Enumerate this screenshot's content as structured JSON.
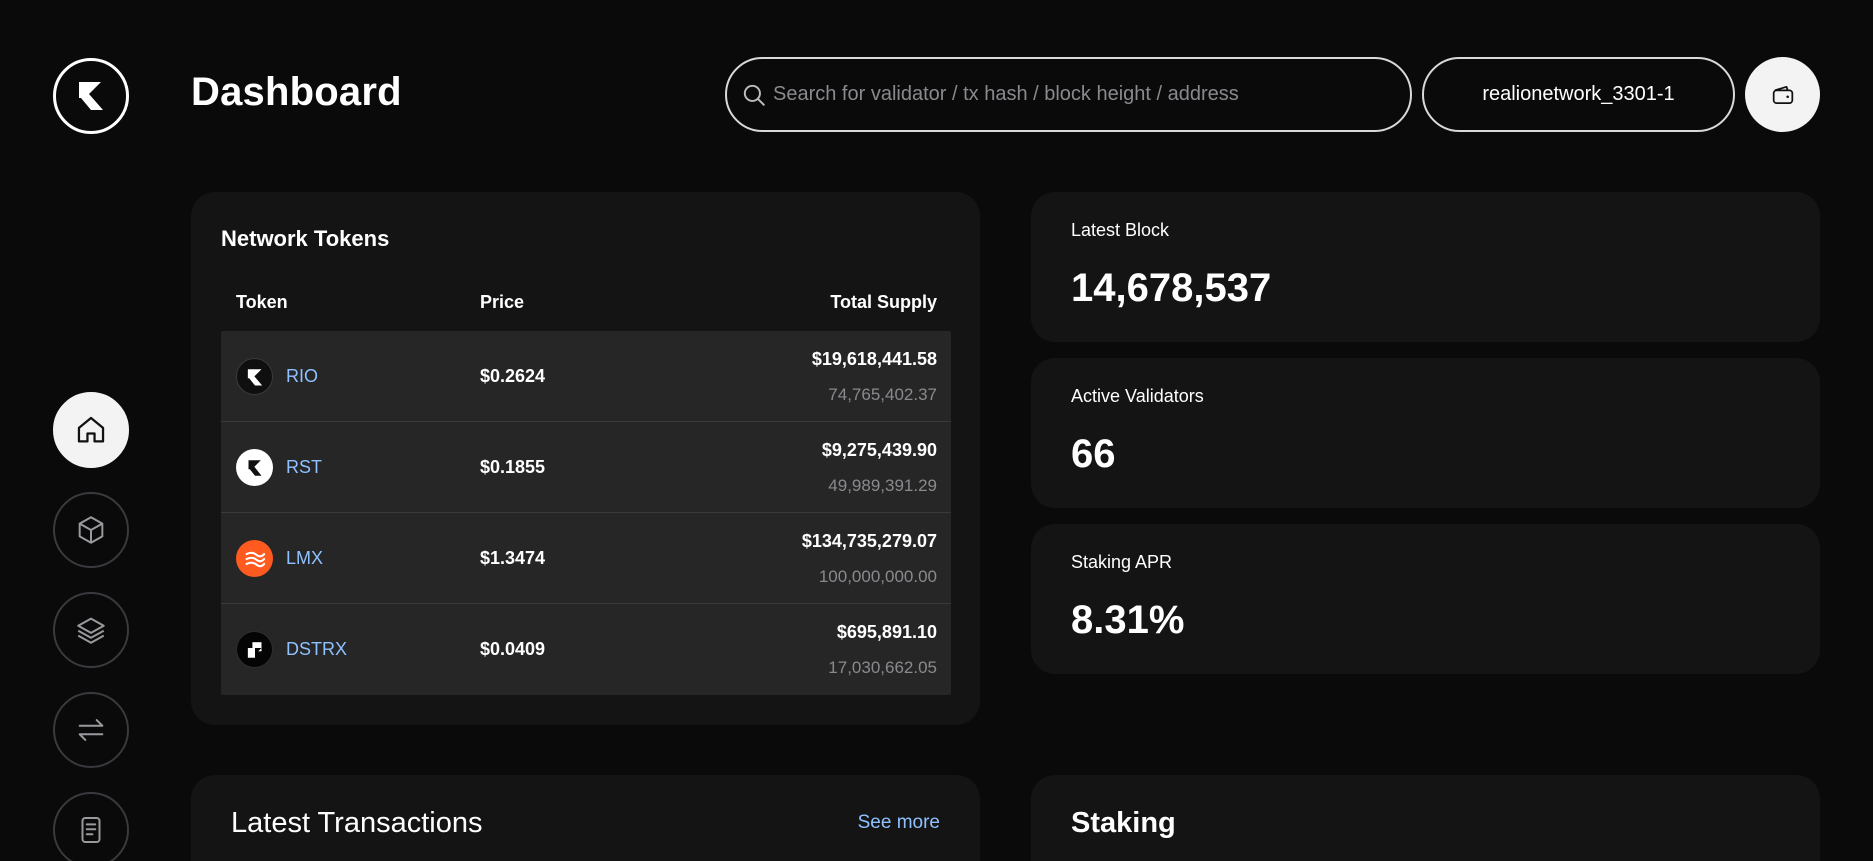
{
  "header": {
    "title": "Dashboard",
    "search_placeholder": "Search for validator / tx hash / block height / address",
    "network": "realionetwork_3301-1"
  },
  "sidebar": {
    "items": [
      {
        "name": "home",
        "icon": "home-icon",
        "active": true
      },
      {
        "name": "blocks",
        "icon": "cube-icon",
        "active": false
      },
      {
        "name": "layers",
        "icon": "layers-icon",
        "active": false
      },
      {
        "name": "transactions",
        "icon": "transfer-arrows-icon",
        "active": false
      },
      {
        "name": "documents",
        "icon": "document-icon",
        "active": false
      }
    ]
  },
  "network_tokens": {
    "title": "Network Tokens",
    "columns": [
      "Token",
      "Price",
      "Total Supply"
    ],
    "rows": [
      {
        "token": "RIO",
        "price": "$0.2624",
        "supply_value": "$19,618,441.58",
        "supply_amount": "74,765,402.37",
        "icon": "rio-icon"
      },
      {
        "token": "RST",
        "price": "$0.1855",
        "supply_value": "$9,275,439.90",
        "supply_amount": "49,989,391.29",
        "icon": "rst-icon"
      },
      {
        "token": "LMX",
        "price": "$1.3474",
        "supply_value": "$134,735,279.07",
        "supply_amount": "100,000,000.00",
        "icon": "lmx-icon"
      },
      {
        "token": "DSTRX",
        "price": "$0.0409",
        "supply_value": "$695,891.10",
        "supply_amount": "17,030,662.05",
        "icon": "dstrx-icon"
      }
    ]
  },
  "stats": {
    "latest_block": {
      "label": "Latest Block",
      "value": "14,678,537"
    },
    "active_validators": {
      "label": "Active Validators",
      "value": "66"
    },
    "staking_apr": {
      "label": "Staking APR",
      "value": "8.31%"
    }
  },
  "latest_transactions": {
    "title": "Latest Transactions",
    "see_more": "See more"
  },
  "staking": {
    "title": "Staking"
  },
  "colors": {
    "background": "#0a0a0b",
    "card": "#141415",
    "link": "#8fc1ff",
    "lmx_brand": "#ff5a1f"
  }
}
